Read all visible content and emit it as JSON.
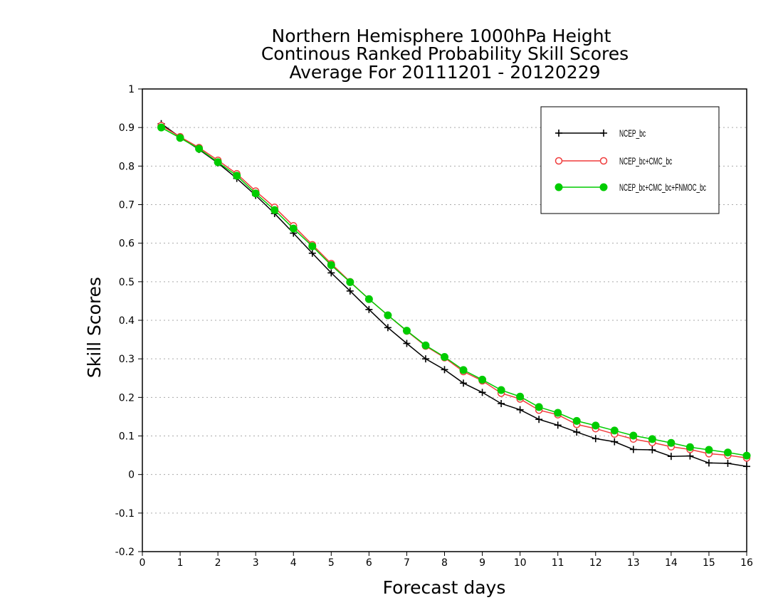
{
  "chart_data": {
    "type": "line",
    "title_lines": [
      "Northern Hemisphere 1000hPa Height",
      "Continous Ranked Probability Skill Scores",
      "Average For 20111201 - 20120229"
    ],
    "xlabel": "Forecast days",
    "ylabel": "Skill Scores",
    "xlim": [
      0,
      16
    ],
    "ylim": [
      -0.2,
      1
    ],
    "x_ticks": [
      "0",
      "1",
      "2",
      "3",
      "4",
      "5",
      "6",
      "7",
      "8",
      "9",
      "10",
      "11",
      "12",
      "13",
      "14",
      "15",
      "16"
    ],
    "y_ticks": [
      "-0.2",
      "-0.1",
      "0",
      "0.1",
      "0.2",
      "0.3",
      "0.4",
      "0.5",
      "0.6",
      "0.7",
      "0.8",
      "0.9",
      "1"
    ],
    "grid": "horizontal dotted",
    "legend_position": "top-right",
    "x": [
      0.5,
      1,
      1.5,
      2,
      2.5,
      3,
      3.5,
      4,
      4.5,
      5,
      5.5,
      6,
      6.5,
      7,
      7.5,
      8,
      8.5,
      9,
      9.5,
      10,
      10.5,
      11,
      11.5,
      12,
      12.5,
      13,
      13.5,
      14,
      14.5,
      15,
      15.5,
      16
    ],
    "series": [
      {
        "name": "NCEP_bc",
        "color": "#000000",
        "marker": "plus",
        "values": [
          0.91,
          0.875,
          0.843,
          0.808,
          0.768,
          0.724,
          0.677,
          0.626,
          0.574,
          0.523,
          0.476,
          0.428,
          0.381,
          0.34,
          0.3,
          0.272,
          0.237,
          0.213,
          0.184,
          0.168,
          0.143,
          0.128,
          0.11,
          0.093,
          0.085,
          0.065,
          0.064,
          0.047,
          0.048,
          0.03,
          0.029,
          0.021
        ]
      },
      {
        "name": "NCEP_bc+CMC_bc",
        "color": "#f03c3c",
        "marker": "open-circle",
        "values": [
          0.905,
          0.876,
          0.848,
          0.815,
          0.78,
          0.735,
          0.693,
          0.645,
          0.596,
          0.547,
          0.5,
          0.455,
          0.413,
          0.372,
          0.333,
          0.303,
          0.267,
          0.243,
          0.211,
          0.196,
          0.167,
          0.155,
          0.13,
          0.119,
          0.105,
          0.092,
          0.083,
          0.072,
          0.065,
          0.054,
          0.05,
          0.043
        ]
      },
      {
        "name": "NCEP_bc+CMC_bc+FNMOC_bc",
        "color": "#00cc00",
        "marker": "filled-circle",
        "values": [
          0.9,
          0.873,
          0.845,
          0.81,
          0.775,
          0.729,
          0.686,
          0.638,
          0.592,
          0.543,
          0.499,
          0.455,
          0.413,
          0.373,
          0.335,
          0.305,
          0.271,
          0.246,
          0.219,
          0.202,
          0.175,
          0.16,
          0.139,
          0.127,
          0.114,
          0.101,
          0.092,
          0.082,
          0.071,
          0.064,
          0.057,
          0.049
        ]
      }
    ]
  }
}
